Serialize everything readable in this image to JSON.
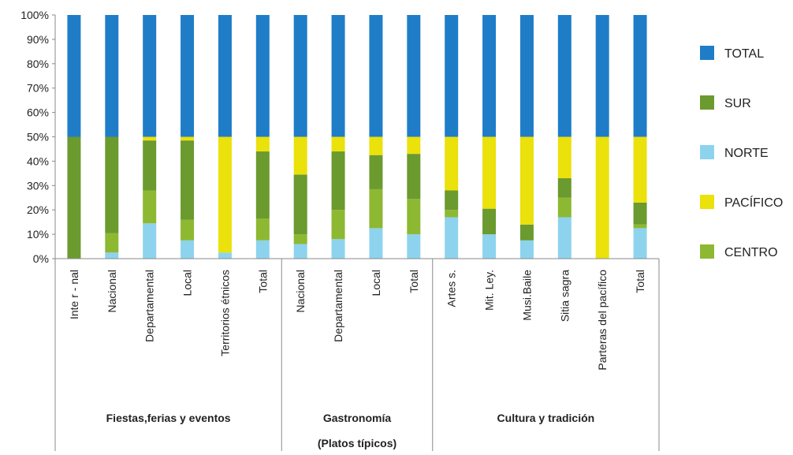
{
  "chart_data": {
    "type": "bar",
    "stacked": true,
    "percent": true,
    "y_ticks": [
      "0%",
      "10%",
      "20%",
      "30%",
      "40%",
      "50%",
      "60%",
      "70%",
      "80%",
      "90%",
      "100%"
    ],
    "ylim": [
      0,
      100
    ],
    "categories": [
      "Inte r - nal",
      "Nacional",
      "Departamental",
      "Local",
      "Territorios étnicos",
      "Total",
      "Nacional",
      "Departamental",
      "Local",
      "Total",
      "Artes s.",
      "Mit. Ley.",
      "Musi.Baile",
      "Sitia sagra",
      "Parteras del pacífico",
      "Total"
    ],
    "groups": [
      {
        "label": "Fiestas,ferias y eventos",
        "sublabel": "",
        "count": 6
      },
      {
        "label": "Gastronomía",
        "sublabel": "(Platos típicos)",
        "count": 4
      },
      {
        "label": "Cultura y tradición",
        "sublabel": "",
        "count": 6
      }
    ],
    "series": [
      {
        "name": "NORTE",
        "color": "#8DD3EE",
        "values": [
          0,
          2.5,
          14.5,
          7.5,
          2.5,
          7.5,
          6,
          8,
          12.5,
          10,
          17,
          10,
          7.5,
          17,
          0,
          12.5
        ]
      },
      {
        "name": "CENTRO",
        "color": "#8DB832",
        "values": [
          0,
          8,
          13.5,
          8.5,
          0,
          9,
          4,
          12,
          16,
          14.5,
          3,
          0,
          0,
          8,
          0,
          1.5
        ]
      },
      {
        "name": "SUR",
        "color": "#6B9A2E",
        "values": [
          50,
          39.5,
          20.5,
          32.5,
          0,
          27.5,
          24.5,
          24,
          14,
          18.5,
          8,
          10.5,
          6.5,
          8,
          0,
          9
        ]
      },
      {
        "name": "PACÍFICO",
        "color": "#EBE10B",
        "values": [
          0,
          0,
          1.5,
          1.5,
          47.5,
          6,
          15.5,
          6,
          7.5,
          7,
          22,
          29.5,
          36,
          17,
          50,
          27
        ]
      },
      {
        "name": "TOTAL",
        "color": "#1F7DC8",
        "values": [
          50,
          50,
          50,
          50,
          50,
          50,
          50,
          50,
          50,
          50,
          50,
          50,
          50,
          50,
          50,
          50
        ]
      }
    ],
    "legend_order": [
      "TOTAL",
      "SUR",
      "NORTE",
      "PACÍFICO",
      "CENTRO"
    ],
    "legend_position": "right",
    "grid": false
  }
}
